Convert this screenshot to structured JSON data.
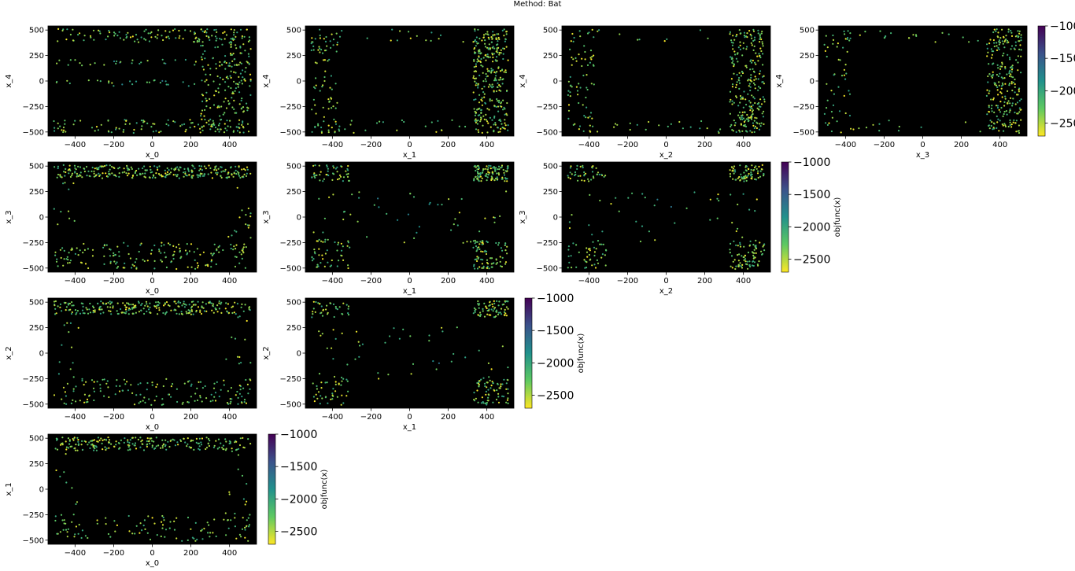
{
  "figure": {
    "suptitle": "Method: Bat"
  },
  "chart_data": {
    "type": "scatter",
    "title": "Method: Bat",
    "background": "#000000",
    "colormap": "viridis_r",
    "color_scale": {
      "label": "objfunc(x)",
      "min": -2700,
      "max": -1000,
      "ticks": [
        -1000,
        -1500,
        -2000,
        -2500
      ]
    },
    "axis_ticks": [
      -400,
      -200,
      0,
      200,
      400
    ],
    "y_ticks": [
      500,
      250,
      0,
      -250,
      -500
    ],
    "xlim": [
      -540,
      540
    ],
    "ylim": [
      -540,
      540
    ],
    "panels": [
      {
        "id": "x0-x4",
        "xlabel": "x_0",
        "ylabel": "x_4",
        "seed": 11,
        "density": 1.0,
        "pattern": "edges-both"
      },
      {
        "id": "x1-x4",
        "xlabel": "x_1",
        "ylabel": "x_4",
        "seed": 23,
        "density": 0.9,
        "pattern": "right-heavy"
      },
      {
        "id": "x2-x4",
        "xlabel": "x_2",
        "ylabel": "x_4",
        "seed": 37,
        "density": 0.75,
        "pattern": "right-heavy"
      },
      {
        "id": "x3-x4",
        "xlabel": "x_3",
        "ylabel": "x_4",
        "seed": 41,
        "density": 0.7,
        "pattern": "right-heavy"
      },
      {
        "id": "x0-x3",
        "xlabel": "x_0",
        "ylabel": "x_3",
        "seed": 53,
        "density": 1.0,
        "pattern": "top-bottom"
      },
      {
        "id": "x1-x3",
        "xlabel": "x_1",
        "ylabel": "x_3",
        "seed": 67,
        "density": 0.7,
        "pattern": "corners"
      },
      {
        "id": "x2-x3",
        "xlabel": "x_2",
        "ylabel": "x_3",
        "seed": 71,
        "density": 0.6,
        "pattern": "corners"
      },
      {
        "id": "x0-x2",
        "xlabel": "x_0",
        "ylabel": "x_2",
        "seed": 83,
        "density": 0.9,
        "pattern": "top-bottom"
      },
      {
        "id": "x1-x2",
        "xlabel": "x_1",
        "ylabel": "x_2",
        "seed": 97,
        "density": 0.55,
        "pattern": "corners"
      },
      {
        "id": "x0-x1",
        "xlabel": "x_0",
        "ylabel": "x_1",
        "seed": 101,
        "density": 0.75,
        "pattern": "top-bottom"
      }
    ]
  }
}
